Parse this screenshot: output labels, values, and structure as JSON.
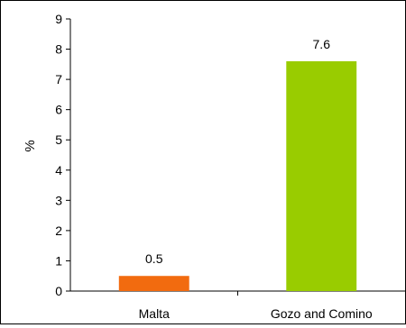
{
  "chart_data": {
    "type": "bar",
    "categories": [
      "Malta",
      "Gozo and Comino"
    ],
    "values": [
      0.5,
      7.6
    ],
    "value_labels": [
      "0.5",
      "7.6"
    ],
    "colors": [
      "#f26b0f",
      "#99cc00"
    ],
    "title": "",
    "xlabel": "",
    "ylabel": "%",
    "ylim": [
      0,
      9
    ],
    "yticks": [
      0,
      1,
      2,
      3,
      4,
      5,
      6,
      7,
      8,
      9
    ],
    "grid": false,
    "legend": "none"
  }
}
